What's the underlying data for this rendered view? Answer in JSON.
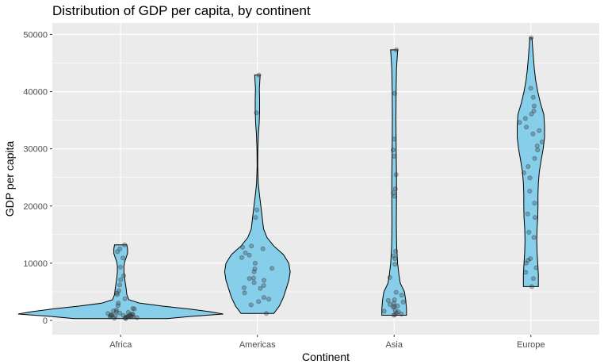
{
  "chart_data": {
    "type": "violin",
    "title": "Distribution of GDP per capita, by continent",
    "xlabel": "Continent",
    "ylabel": "GDP per capita",
    "ylim": [
      -2500,
      52000
    ],
    "yticks": [
      0,
      10000,
      20000,
      30000,
      40000,
      50000
    ],
    "ytick_labels": [
      "0",
      "10000",
      "20000",
      "30000",
      "40000",
      "50000"
    ],
    "categories": [
      "Africa",
      "Americas",
      "Asia",
      "Europe"
    ],
    "grid": true,
    "colors": {
      "panel_bg": "#ebebeb",
      "grid_major": "#ffffff",
      "violin_fill": "#87ceeb",
      "violin_stroke": "#000000",
      "point": "#333333"
    },
    "violins": [
      {
        "category": "Africa",
        "profile": [
          {
            "y": 300,
            "w": 0.34
          },
          {
            "y": 700,
            "w": 0.52
          },
          {
            "y": 1100,
            "w": 0.75
          },
          {
            "y": 1500,
            "w": 0.66
          },
          {
            "y": 2000,
            "w": 0.5
          },
          {
            "y": 2500,
            "w": 0.3
          },
          {
            "y": 3000,
            "w": 0.14
          },
          {
            "y": 3600,
            "w": 0.06
          },
          {
            "y": 4500,
            "w": 0.045
          },
          {
            "y": 5500,
            "w": 0.04
          },
          {
            "y": 6500,
            "w": 0.034
          },
          {
            "y": 7500,
            "w": 0.028
          },
          {
            "y": 8500,
            "w": 0.024
          },
          {
            "y": 9500,
            "w": 0.024
          },
          {
            "y": 10300,
            "w": 0.03
          },
          {
            "y": 11000,
            "w": 0.04
          },
          {
            "y": 11700,
            "w": 0.05
          },
          {
            "y": 12500,
            "w": 0.05
          },
          {
            "y": 13200,
            "w": 0.045
          }
        ],
        "points": [
          300,
          350,
          420,
          480,
          520,
          560,
          600,
          620,
          650,
          690,
          720,
          760,
          800,
          830,
          870,
          900,
          950,
          980,
          1040,
          1100,
          1200,
          1280,
          1400,
          1500,
          1650,
          1800,
          2000,
          2080,
          2600,
          3000,
          3800,
          4500,
          4800,
          5200,
          6200,
          7100,
          7800,
          9300,
          10900,
          12000,
          12500,
          13200
        ]
      },
      {
        "category": "Americas",
        "profile": [
          {
            "y": 1200,
            "w": 0.12
          },
          {
            "y": 2500,
            "w": 0.16
          },
          {
            "y": 4000,
            "w": 0.19
          },
          {
            "y": 5500,
            "w": 0.21
          },
          {
            "y": 7000,
            "w": 0.23
          },
          {
            "y": 8500,
            "w": 0.24
          },
          {
            "y": 10000,
            "w": 0.23
          },
          {
            "y": 11500,
            "w": 0.19
          },
          {
            "y": 13000,
            "w": 0.12
          },
          {
            "y": 14500,
            "w": 0.07
          },
          {
            "y": 16000,
            "w": 0.045
          },
          {
            "y": 18000,
            "w": 0.035
          },
          {
            "y": 20000,
            "w": 0.025
          },
          {
            "y": 22000,
            "w": 0.015
          },
          {
            "y": 24000,
            "w": 0.006
          },
          {
            "y": 27000,
            "w": 0.002
          },
          {
            "y": 30000,
            "w": 0.003
          },
          {
            "y": 32500,
            "w": 0.007
          },
          {
            "y": 34500,
            "w": 0.013
          },
          {
            "y": 36500,
            "w": 0.016
          },
          {
            "y": 38500,
            "w": 0.016
          },
          {
            "y": 40500,
            "w": 0.014
          },
          {
            "y": 42900,
            "w": 0.02
          }
        ],
        "points": [
          1200,
          2700,
          3300,
          3700,
          4000,
          4800,
          5600,
          5700,
          6100,
          6600,
          7000,
          7300,
          7400,
          8500,
          9000,
          9100,
          10000,
          11000,
          11400,
          11800,
          12500,
          12800,
          13000,
          18000,
          19300,
          36300,
          42900
        ]
      },
      {
        "category": "Asia",
        "profile": [
          {
            "y": 900,
            "w": 0.09
          },
          {
            "y": 2000,
            "w": 0.09
          },
          {
            "y": 3500,
            "w": 0.085
          },
          {
            "y": 5000,
            "w": 0.075
          },
          {
            "y": 6500,
            "w": 0.045
          },
          {
            "y": 8000,
            "w": 0.035
          },
          {
            "y": 10000,
            "w": 0.025
          },
          {
            "y": 13000,
            "w": 0.018
          },
          {
            "y": 17000,
            "w": 0.016
          },
          {
            "y": 21000,
            "w": 0.017
          },
          {
            "y": 25000,
            "w": 0.017
          },
          {
            "y": 30000,
            "w": 0.015
          },
          {
            "y": 35000,
            "w": 0.013
          },
          {
            "y": 40000,
            "w": 0.014
          },
          {
            "y": 44000,
            "w": 0.017
          },
          {
            "y": 47300,
            "w": 0.026
          }
        ],
        "points": [
          900,
          1000,
          1100,
          1300,
          1500,
          1600,
          1700,
          2300,
          2400,
          2500,
          2800,
          3000,
          3200,
          3500,
          3600,
          4400,
          4900,
          7500,
          9800,
          10800,
          11300,
          12100,
          21700,
          22300,
          23000,
          25500,
          28700,
          29800,
          31700,
          39700,
          47300
        ]
      },
      {
        "category": "Europe",
        "profile": [
          {
            "y": 5900,
            "w": 0.055
          },
          {
            "y": 8000,
            "w": 0.055
          },
          {
            "y": 10000,
            "w": 0.05
          },
          {
            "y": 12000,
            "w": 0.045
          },
          {
            "y": 14000,
            "w": 0.043
          },
          {
            "y": 16000,
            "w": 0.045
          },
          {
            "y": 18000,
            "w": 0.05
          },
          {
            "y": 20000,
            "w": 0.052
          },
          {
            "y": 22000,
            "w": 0.052
          },
          {
            "y": 24000,
            "w": 0.055
          },
          {
            "y": 26000,
            "w": 0.062
          },
          {
            "y": 28000,
            "w": 0.075
          },
          {
            "y": 30000,
            "w": 0.09
          },
          {
            "y": 32000,
            "w": 0.1
          },
          {
            "y": 34000,
            "w": 0.1
          },
          {
            "y": 36000,
            "w": 0.095
          },
          {
            "y": 38000,
            "w": 0.07
          },
          {
            "y": 40000,
            "w": 0.05
          },
          {
            "y": 42000,
            "w": 0.035
          },
          {
            "y": 44000,
            "w": 0.025
          },
          {
            "y": 46000,
            "w": 0.018
          },
          {
            "y": 48000,
            "w": 0.012
          },
          {
            "y": 49400,
            "w": 0.008
          }
        ],
        "points": [
          5900,
          7300,
          8400,
          9200,
          10000,
          10500,
          10800,
          14500,
          15400,
          18000,
          18600,
          20500,
          22600,
          24900,
          25800,
          26900,
          28300,
          29800,
          30500,
          31200,
          32600,
          33200,
          33800,
          34600,
          35300,
          36100,
          36600,
          37500,
          39000,
          40600,
          49400
        ]
      }
    ]
  }
}
